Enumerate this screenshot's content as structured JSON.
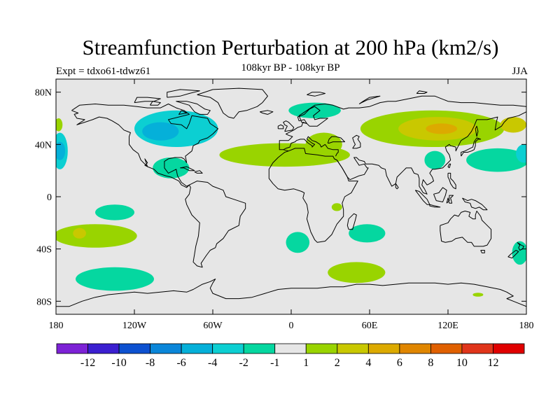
{
  "title": "Streamfunction Perturbation at 200 hPa (km2/s)",
  "subtitle": "108kyr BP - 108kyr BP",
  "experiment": "Expt = tdxo61-tdwz61",
  "season": "JJA",
  "chart_data": {
    "type": "heatmap",
    "projection": "cylindrical-equidistant",
    "variable": "streamfunction perturbation",
    "level": "200 hPa",
    "units": "km2/s",
    "x_range": [
      -180,
      180
    ],
    "y_range": [
      -90,
      90
    ],
    "x_ticks": [
      {
        "value": -180,
        "label": "180"
      },
      {
        "value": -120,
        "label": "120W"
      },
      {
        "value": -60,
        "label": "60W"
      },
      {
        "value": 0,
        "label": "0"
      },
      {
        "value": 60,
        "label": "60E"
      },
      {
        "value": 120,
        "label": "120E"
      },
      {
        "value": 180,
        "label": "180"
      }
    ],
    "y_ticks": [
      {
        "value": 80,
        "label": "80N"
      },
      {
        "value": 40,
        "label": "40N"
      },
      {
        "value": 0,
        "label": "0"
      },
      {
        "value": -40,
        "label": "40S"
      },
      {
        "value": -80,
        "label": "80S"
      }
    ],
    "colorbar": {
      "colors": [
        "#7d22d6",
        "#3b1fd0",
        "#0d51d0",
        "#0a86d9",
        "#05b0d9",
        "#0ccfd2",
        "#05d7a0",
        "#e6e6e6",
        "#99d400",
        "#c9c800",
        "#dcaa00",
        "#e08600",
        "#e06000",
        "#e0351b",
        "#e00000"
      ],
      "labels": [
        "-12",
        "-10",
        "-8",
        "-6",
        "-4",
        "-2",
        "-1",
        "1",
        "2",
        "4",
        "6",
        "8",
        "10",
        "12"
      ]
    },
    "anomaly_regions": [
      {
        "name": "north-america",
        "lon": -88,
        "lat": 52,
        "rlon": 32,
        "rlat": 14,
        "value": -3
      },
      {
        "name": "north-america-core",
        "lon": -100,
        "lat": 50,
        "rlon": 14,
        "rlat": 7,
        "value": -5
      },
      {
        "name": "north-pacific-west",
        "lon": -177,
        "lat": 35,
        "rlon": 6,
        "rlat": 14,
        "value": -3
      },
      {
        "name": "north-pacific-west-core",
        "lon": -177,
        "lat": 35,
        "rlon": 4,
        "rlat": 7,
        "value": -5
      },
      {
        "name": "north-alaska",
        "lon": -178,
        "lat": 55,
        "rlon": 3,
        "rlat": 5,
        "value": 1.5
      },
      {
        "name": "central-america",
        "lon": -92,
        "lat": 22,
        "rlon": 14,
        "rlat": 8,
        "value": -1.5
      },
      {
        "name": "north-atlantic-arctic",
        "lon": 18,
        "lat": 66,
        "rlon": 20,
        "rlat": 6,
        "value": -1.5
      },
      {
        "name": "atlantic-ridge",
        "lon": -5,
        "lat": 32,
        "rlon": 50,
        "rlat": 9,
        "value": 1.5
      },
      {
        "name": "north-africa-ridge",
        "lon": 25,
        "lat": 40,
        "rlon": 14,
        "rlat": 9,
        "value": 1.5
      },
      {
        "name": "asia-ridge",
        "lon": 108,
        "lat": 52,
        "rlon": 55,
        "rlat": 14,
        "value": 1.5
      },
      {
        "name": "asia-ridge-mid",
        "lon": 112,
        "lat": 52,
        "rlon": 30,
        "rlat": 9,
        "value": 3
      },
      {
        "name": "asia-ridge-core",
        "lon": 115,
        "lat": 52,
        "rlon": 12,
        "rlat": 4,
        "value": 5
      },
      {
        "name": "kamchatka-ridge",
        "lon": 170,
        "lat": 55,
        "rlon": 10,
        "rlat": 6,
        "value": 3
      },
      {
        "name": "west-pacific",
        "lon": 158,
        "lat": 28,
        "rlon": 24,
        "rlat": 9,
        "value": -1.5
      },
      {
        "name": "west-pacific-core",
        "lon": 178,
        "lat": 33,
        "rlon": 6,
        "rlat": 7,
        "value": -3
      },
      {
        "name": "indonesia",
        "lon": 110,
        "lat": 28,
        "rlon": 8,
        "rlat": 7,
        "value": -1.5
      },
      {
        "name": "east-africa",
        "lon": 35,
        "lat": -8,
        "rlon": 4,
        "rlat": 3,
        "value": 1.5
      },
      {
        "name": "south-pacific-subtropics",
        "lon": -135,
        "lat": -12,
        "rlon": 15,
        "rlat": 6,
        "value": -1.5
      },
      {
        "name": "south-pacific-ridge",
        "lon": -150,
        "lat": -30,
        "rlon": 32,
        "rlat": 9,
        "value": 1.5
      },
      {
        "name": "south-pacific-core",
        "lon": -162,
        "lat": -28,
        "rlon": 5,
        "rlat": 4,
        "value": 3
      },
      {
        "name": "south-pacific-high-lat",
        "lon": -135,
        "lat": -63,
        "rlon": 30,
        "rlat": 9,
        "value": -1.5
      },
      {
        "name": "south-atlantic",
        "lon": 5,
        "lat": -35,
        "rlon": 9,
        "rlat": 8,
        "value": -1.5
      },
      {
        "name": "south-indian",
        "lon": 58,
        "lat": -28,
        "rlon": 14,
        "rlat": 7,
        "value": -1.5
      },
      {
        "name": "southern-ocean-ridge",
        "lon": 50,
        "lat": -58,
        "rlon": 22,
        "rlat": 8,
        "value": 1.5
      },
      {
        "name": "tasman",
        "lon": 175,
        "lat": -43,
        "rlon": 6,
        "rlat": 9,
        "value": -1.5
      },
      {
        "name": "antarctic-margin",
        "lon": 143,
        "lat": -75,
        "rlon": 4,
        "rlat": 1.5,
        "value": 1.5
      }
    ]
  }
}
